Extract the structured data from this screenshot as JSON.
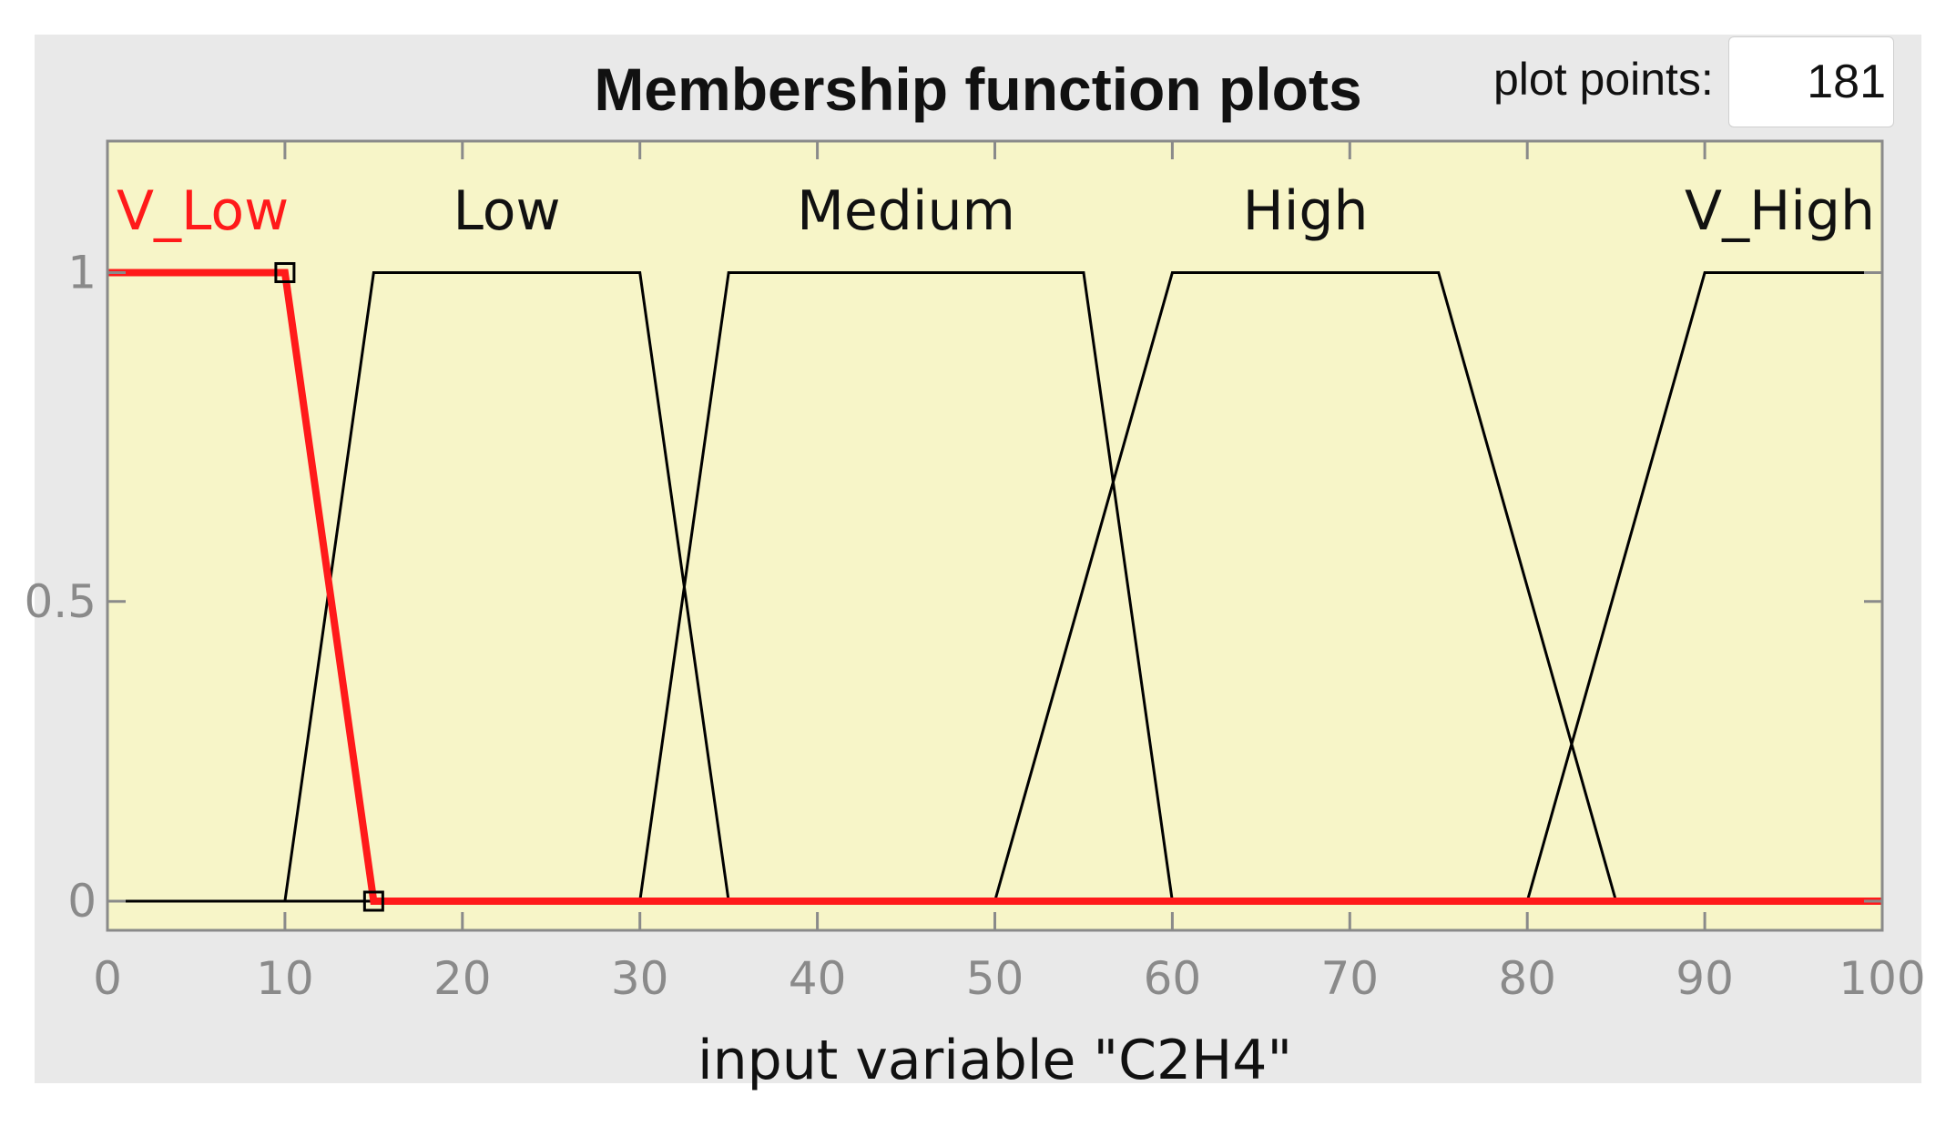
{
  "title": "Membership function plots",
  "plot_points": {
    "label": "plot points:",
    "value": "181"
  },
  "colors": {
    "plot_background": "#f7f5c8",
    "selected": "#ff1a1a",
    "line": "#000000",
    "panel": "#e9e9e9"
  },
  "chart_data": {
    "type": "line",
    "title": "Membership function plots",
    "xlabel": "input variable \"C2H4\"",
    "ylabel": "",
    "xlim": [
      0,
      100
    ],
    "ylim": [
      0,
      1.2
    ],
    "xticks": [
      0,
      10,
      20,
      30,
      40,
      50,
      60,
      70,
      80,
      90,
      100
    ],
    "xtick_labels": [
      "0",
      "10",
      "20",
      "30",
      "40",
      "50",
      "60",
      "70",
      "80",
      "90",
      "100"
    ],
    "yticks": [
      0,
      0.5,
      1
    ],
    "ytick_labels": [
      "0",
      "0.5",
      "1"
    ],
    "grid": false,
    "series": [
      {
        "name": "V_Low",
        "selected": true,
        "label_x": 5,
        "points": [
          [
            0,
            1
          ],
          [
            10,
            1
          ],
          [
            15,
            0
          ],
          [
            100,
            0
          ]
        ]
      },
      {
        "name": "Low",
        "selected": false,
        "label_x": 22.5,
        "points": [
          [
            0,
            0
          ],
          [
            10,
            0
          ],
          [
            15,
            1
          ],
          [
            30,
            1
          ],
          [
            35,
            0
          ],
          [
            100,
            0
          ]
        ]
      },
      {
        "name": "Medium",
        "selected": false,
        "label_x": 45,
        "points": [
          [
            0,
            0
          ],
          [
            30,
            0
          ],
          [
            35,
            1
          ],
          [
            55,
            1
          ],
          [
            60,
            0
          ],
          [
            100,
            0
          ]
        ]
      },
      {
        "name": "High",
        "selected": false,
        "label_x": 67.5,
        "points": [
          [
            0,
            0
          ],
          [
            50,
            0
          ],
          [
            60,
            1
          ],
          [
            75,
            1
          ],
          [
            85,
            0
          ],
          [
            100,
            0
          ]
        ]
      },
      {
        "name": "V_High",
        "selected": false,
        "label_x": 95,
        "points": [
          [
            0,
            0
          ],
          [
            80,
            0
          ],
          [
            90,
            1
          ],
          [
            100,
            1
          ]
        ]
      }
    ]
  }
}
